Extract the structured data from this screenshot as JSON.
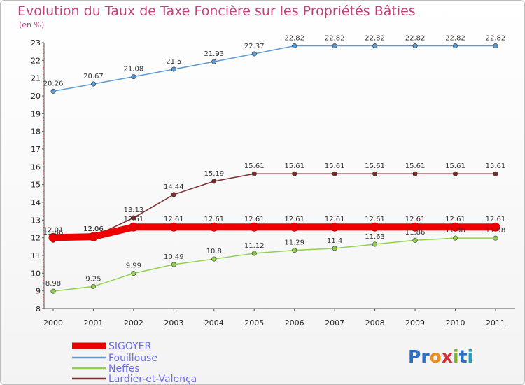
{
  "title": "Evolution du Taux de Taxe Foncière sur les Propriétés Bâties",
  "unit": "(en %)",
  "logo": "Proxiti",
  "chart_data": {
    "type": "line",
    "title": "Evolution du Taux de Taxe Foncière sur les Propriétés Bâties",
    "ylabel": "(en %)",
    "ylim": [
      8,
      23
    ],
    "yticks": [
      8,
      9,
      10,
      11,
      12,
      13,
      14,
      15,
      16,
      17,
      18,
      19,
      20,
      21,
      22,
      23
    ],
    "x": [
      "2000",
      "2001",
      "2002",
      "2003",
      "2004",
      "2005",
      "2006",
      "2007",
      "2008",
      "2009",
      "2010",
      "2011"
    ],
    "grid": false,
    "legend": "bottom-left",
    "series": [
      {
        "name": "SIGOYER",
        "color": "#ee0000",
        "values": [
          12.01,
          12.06,
          12.61,
          12.61,
          12.61,
          12.61,
          12.61,
          12.61,
          12.61,
          12.61,
          12.61,
          12.61
        ],
        "labels": [
          "12.01",
          "12.06",
          "12.61",
          "12.61",
          "12.61",
          "12.61",
          "12.61",
          "12.61",
          "12.61",
          "12.61",
          "12.61",
          "12.61"
        ]
      },
      {
        "name": "Fouillouse",
        "color": "#5b9bd5",
        "values": [
          20.26,
          20.67,
          21.08,
          21.5,
          21.93,
          22.37,
          22.82,
          22.82,
          22.82,
          22.82,
          22.82,
          22.82
        ],
        "labels": [
          "20.26",
          "20.67",
          "21.08",
          "21.5",
          "21.93",
          "22.37",
          "22.82",
          "22.82",
          "22.82",
          "22.82",
          "22.82",
          "22.82"
        ]
      },
      {
        "name": "Neffes",
        "color": "#8fd14f",
        "values": [
          8.98,
          9.25,
          9.99,
          10.49,
          10.8,
          11.12,
          11.29,
          11.4,
          11.63,
          11.86,
          11.98,
          11.98
        ],
        "labels": [
          "8.98",
          "9.25",
          "9.99",
          "10.49",
          "10.8",
          "11.12",
          "11.29",
          "11.4",
          "11.63",
          "11.86",
          "11.98",
          "11.98"
        ]
      },
      {
        "name": "Lardier-et-Valença",
        "color": "#7b2d2d",
        "values": [
          11.86,
          12.06,
          13.13,
          14.44,
          15.19,
          15.61,
          15.61,
          15.61,
          15.61,
          15.61,
          15.61,
          15.61
        ],
        "labels": [
          "11.86",
          "12.06",
          "13.13",
          "14.44",
          "15.19",
          "15.61",
          "15.61",
          "15.61",
          "15.61",
          "15.61",
          "15.61",
          "15.61"
        ]
      }
    ]
  }
}
